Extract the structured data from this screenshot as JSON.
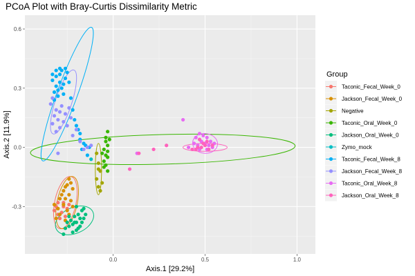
{
  "chart_data": {
    "type": "scatter",
    "title": "PCoA Plot with Bray-Curtis Dissimilarity Metric",
    "xlabel": "Axis.1   [29.2%]",
    "ylabel": "Axis.2   [11.9%]",
    "xlim": [
      -0.48,
      1.1
    ],
    "ylim": [
      -0.54,
      0.67
    ],
    "xticks": [
      0.0,
      0.5,
      1.0
    ],
    "xtick_labels": [
      "0.0",
      "0.5",
      "1.0"
    ],
    "yticks": [
      -0.3,
      0.0,
      0.3,
      0.6
    ],
    "ytick_labels": [
      "-0.3",
      "0.0",
      "0.3",
      "0.6"
    ],
    "grid": true,
    "legend": {
      "title": "Group",
      "position": "right",
      "entries": [
        {
          "label": "Taconic_Fecal_Week_0",
          "color": "#F8766D"
        },
        {
          "label": "Jackson_Fecal_Week_0",
          "color": "#D89000"
        },
        {
          "label": "Negative",
          "color": "#A3A500"
        },
        {
          "label": "Taconic_Oral_Week_0",
          "color": "#39B600"
        },
        {
          "label": "Jackson_Oral_Week_0",
          "color": "#00BF7D"
        },
        {
          "label": "Zymo_mock",
          "color": "#00BFC4"
        },
        {
          "label": "Taconic_Fecal_Week_8",
          "color": "#00B0F6"
        },
        {
          "label": "Jackson_Fecal_Week_8",
          "color": "#9590FF"
        },
        {
          "label": "Taconic_Oral_Week_8",
          "color": "#E76BF3"
        },
        {
          "label": "Jackson_Oral_Week_8",
          "color": "#FF62BC"
        }
      ]
    },
    "series": [
      {
        "group": "Taconic_Fecal_Week_0",
        "color": "#F8766D",
        "points": [
          [
            -0.29,
            -0.26
          ],
          [
            -0.27,
            -0.28
          ],
          [
            -0.31,
            -0.3
          ],
          [
            -0.25,
            -0.31
          ],
          [
            -0.28,
            -0.33
          ],
          [
            -0.3,
            -0.34
          ],
          [
            -0.26,
            -0.35
          ],
          [
            -0.32,
            -0.32
          ],
          [
            -0.24,
            -0.29
          ],
          [
            -0.29,
            -0.36
          ],
          [
            -0.27,
            -0.3
          ],
          [
            -0.3,
            -0.28
          ]
        ],
        "ellipse": {
          "cx": -0.26,
          "cy": -0.28,
          "rx": 0.058,
          "ry": 0.135,
          "angle_deg": 12
        }
      },
      {
        "group": "Jackson_Fecal_Week_0",
        "color": "#D89000",
        "points": [
          [
            -0.24,
            -0.16
          ],
          [
            -0.25,
            -0.19
          ],
          [
            -0.22,
            -0.21
          ],
          [
            -0.27,
            -0.22
          ],
          [
            -0.24,
            -0.24
          ],
          [
            -0.26,
            -0.2
          ],
          [
            -0.29,
            -0.26
          ],
          [
            -0.23,
            -0.27
          ],
          [
            -0.27,
            -0.29
          ],
          [
            -0.25,
            -0.32
          ],
          [
            -0.3,
            -0.31
          ],
          [
            -0.29,
            -0.34
          ],
          [
            -0.26,
            -0.37
          ],
          [
            -0.31,
            -0.36
          ],
          [
            -0.24,
            -0.34
          ],
          [
            -0.22,
            -0.3
          ],
          [
            -0.28,
            -0.24
          ],
          [
            -0.32,
            -0.29
          ],
          [
            -0.23,
            -0.18
          ],
          [
            -0.26,
            -0.26
          ]
        ],
        "ellipse": {
          "cx": -0.25,
          "cy": -0.28,
          "rx": 0.055,
          "ry": 0.135,
          "angle_deg": 12
        }
      },
      {
        "group": "Negative",
        "color": "#A3A500",
        "points": [
          [
            -0.08,
            -0.08
          ],
          [
            -0.07,
            -0.12
          ],
          [
            -0.09,
            -0.16
          ],
          [
            -0.08,
            -0.2
          ],
          [
            -0.07,
            -0.22
          ],
          [
            -0.09,
            -0.03
          ],
          [
            -0.06,
            -0.18
          ],
          [
            -0.08,
            -0.11
          ]
        ],
        "ellipse": {
          "cx": -0.08,
          "cy": -0.11,
          "rx": 0.017,
          "ry": 0.13,
          "angle_deg": 0
        }
      },
      {
        "group": "Taconic_Oral_Week_0",
        "color": "#39B600",
        "points": [
          [
            -0.04,
            -0.04
          ],
          [
            -0.03,
            -0.05
          ],
          [
            -0.05,
            -0.07
          ],
          [
            -0.04,
            -0.09
          ],
          [
            -0.03,
            -0.02
          ],
          [
            -0.02,
            0.04
          ],
          [
            -0.03,
            0.01
          ],
          [
            -0.05,
            -0.01
          ],
          [
            -0.04,
            0.03
          ],
          [
            -0.03,
            0.08
          ],
          [
            -0.06,
            -0.03
          ],
          [
            -0.05,
            -0.1
          ],
          [
            -0.03,
            -0.12
          ],
          [
            -0.04,
            0.05
          ]
        ],
        "ellipse": {
          "cx": 0.27,
          "cy": -0.01,
          "rx": 0.72,
          "ry": 0.075,
          "angle_deg": -1.5
        }
      },
      {
        "group": "Jackson_Oral_Week_0",
        "color": "#00BF7D",
        "points": [
          [
            -0.17,
            -0.32
          ],
          [
            -0.19,
            -0.34
          ],
          [
            -0.16,
            -0.36
          ],
          [
            -0.2,
            -0.38
          ],
          [
            -0.18,
            -0.4
          ],
          [
            -0.21,
            -0.35
          ],
          [
            -0.23,
            -0.37
          ],
          [
            -0.19,
            -0.41
          ],
          [
            -0.17,
            -0.38
          ],
          [
            -0.22,
            -0.39
          ],
          [
            -0.24,
            -0.4
          ],
          [
            -0.26,
            -0.41
          ],
          [
            -0.2,
            -0.42
          ],
          [
            -0.15,
            -0.34
          ],
          [
            -0.24,
            -0.35
          ],
          [
            -0.22,
            -0.43
          ],
          [
            -0.27,
            -0.44
          ],
          [
            -0.18,
            -0.36
          ],
          [
            -0.21,
            -0.38
          ],
          [
            -0.25,
            -0.38
          ],
          [
            -0.16,
            -0.31
          ],
          [
            -0.2,
            -0.3
          ]
        ],
        "ellipse": {
          "cx": -0.21,
          "cy": -0.37,
          "rx": 0.11,
          "ry": 0.065,
          "angle_deg": -25
        }
      },
      {
        "group": "Zymo_mock",
        "color": "#00BFC4",
        "points": [
          [
            -0.12,
            -0.06
          ]
        ],
        "ellipse": null
      },
      {
        "group": "Taconic_Fecal_Week_8",
        "color": "#00B0F6",
        "points": [
          [
            -0.33,
            0.34
          ],
          [
            -0.31,
            0.31
          ],
          [
            -0.29,
            0.33
          ],
          [
            -0.32,
            0.28
          ],
          [
            -0.28,
            0.3
          ],
          [
            -0.3,
            0.26
          ],
          [
            -0.27,
            0.32
          ],
          [
            -0.31,
            0.36
          ],
          [
            -0.29,
            0.37
          ],
          [
            -0.26,
            0.35
          ],
          [
            -0.28,
            0.39
          ],
          [
            -0.25,
            0.38
          ],
          [
            -0.3,
            0.29
          ],
          [
            -0.32,
            0.24
          ],
          [
            -0.27,
            0.27
          ],
          [
            -0.24,
            0.33
          ],
          [
            -0.23,
            0.25
          ],
          [
            -0.22,
            0.19
          ],
          [
            -0.21,
            0.14
          ],
          [
            -0.19,
            0.09
          ],
          [
            -0.18,
            0.04
          ],
          [
            -0.17,
            -0.01
          ],
          [
            -0.16,
            0.02
          ],
          [
            -0.18,
            0.07
          ],
          [
            -0.2,
            0.11
          ],
          [
            -0.15,
            0.01
          ],
          [
            -0.14,
            -0.04
          ],
          [
            -0.13,
            0.0
          ],
          [
            -0.29,
            0.4
          ],
          [
            -0.26,
            0.4
          ],
          [
            -0.31,
            0.39
          ],
          [
            -0.33,
            0.37
          ]
        ],
        "ellipse": {
          "cx": -0.25,
          "cy": 0.27,
          "rx": 0.055,
          "ry": 0.36,
          "angle_deg": 20
        }
      },
      {
        "group": "Jackson_Fecal_Week_8",
        "color": "#9590FF",
        "points": [
          [
            -0.34,
            0.22
          ],
          [
            -0.33,
            0.25
          ],
          [
            -0.31,
            0.19
          ],
          [
            -0.29,
            0.18
          ],
          [
            -0.32,
            0.16
          ],
          [
            -0.28,
            0.21
          ],
          [
            -0.26,
            0.17
          ],
          [
            -0.3,
            0.14
          ],
          [
            -0.27,
            0.13
          ],
          [
            -0.25,
            0.11
          ],
          [
            -0.23,
            0.15
          ],
          [
            -0.24,
            0.2
          ],
          [
            -0.33,
            0.12
          ],
          [
            -0.29,
            0.1
          ],
          [
            -0.22,
            0.06
          ],
          [
            -0.2,
            0.09
          ],
          [
            -0.18,
            0.03
          ],
          [
            -0.16,
            -0.01
          ],
          [
            -0.14,
            0.0
          ],
          [
            -0.12,
            0.01
          ],
          [
            -0.31,
            0.08
          ],
          [
            -0.3,
            -0.03
          ]
        ],
        "ellipse": {
          "cx": -0.27,
          "cy": 0.23,
          "rx": 0.045,
          "ry": 0.17,
          "angle_deg": 18
        }
      },
      {
        "group": "Taconic_Oral_Week_8",
        "color": "#E76BF3",
        "points": [
          [
            0.47,
            0.07
          ],
          [
            0.49,
            0.06
          ],
          [
            0.51,
            0.05
          ],
          [
            0.48,
            0.03
          ],
          [
            0.5,
            0.02
          ],
          [
            0.52,
            0.01
          ],
          [
            0.46,
            0.01
          ],
          [
            0.45,
            0.05
          ],
          [
            0.53,
            0.03
          ],
          [
            0.54,
            0.0
          ],
          [
            0.55,
            0.02
          ],
          [
            0.47,
            -0.01
          ],
          [
            0.44,
            0.02
          ],
          [
            0.51,
            -0.01
          ],
          [
            0.38,
            0.14
          ],
          [
            0.13,
            -0.03
          ],
          [
            0.41,
            0.0
          ]
        ],
        "ellipse": {
          "cx": 0.5,
          "cy": 0.02,
          "rx": 0.068,
          "ry": 0.05,
          "angle_deg": 5
        }
      },
      {
        "group": "Jackson_Oral_Week_8",
        "color": "#FF62BC",
        "points": [
          [
            0.48,
            0.0
          ],
          [
            0.5,
            0.01
          ],
          [
            0.46,
            0.0
          ],
          [
            0.52,
            -0.01
          ],
          [
            0.49,
            0.02
          ],
          [
            0.45,
            -0.01
          ],
          [
            0.54,
            0.01
          ],
          [
            0.47,
            0.04
          ],
          [
            0.29,
            0.01
          ],
          [
            0.22,
            -0.01
          ],
          [
            0.14,
            -0.03
          ],
          [
            0.09,
            -0.11
          ],
          [
            0.51,
            0.03
          ],
          [
            0.43,
            -0.01
          ]
        ],
        "ellipse": {
          "cx": 0.5,
          "cy": 0.0,
          "rx": 0.12,
          "ry": 0.02,
          "angle_deg": 0
        }
      }
    ]
  }
}
